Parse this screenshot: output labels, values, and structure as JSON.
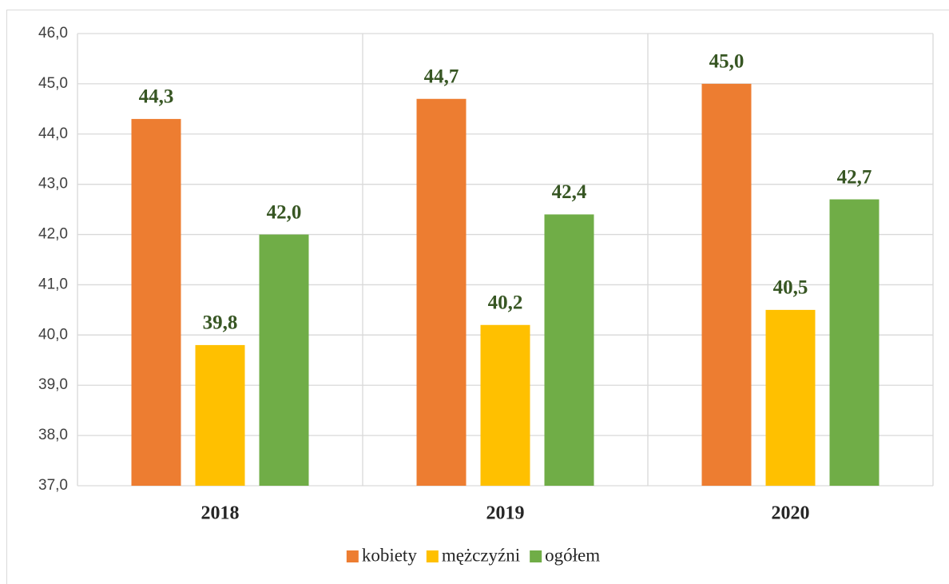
{
  "chart_data": {
    "type": "bar",
    "categories": [
      "2018",
      "2019",
      "2020"
    ],
    "series": [
      {
        "name": "kobiety",
        "color": "#ed7d31",
        "values": [
          44.3,
          44.7,
          45.0
        ],
        "value_labels": [
          "44,3",
          "44,7",
          "45,0"
        ]
      },
      {
        "name": "mężczyźni",
        "color": "#ffc000",
        "values": [
          39.8,
          40.2,
          40.5
        ],
        "value_labels": [
          "39,8",
          "40,2",
          "40,5"
        ]
      },
      {
        "name": "ogółem",
        "color": "#70ad47",
        "values": [
          42.0,
          42.4,
          42.7
        ],
        "value_labels": [
          "42,0",
          "42,4",
          "42,7"
        ]
      }
    ],
    "ylim": [
      37,
      46
    ],
    "yticks": [
      {
        "value": 37,
        "label": "37,0"
      },
      {
        "value": 38,
        "label": "38,0"
      },
      {
        "value": 39,
        "label": "39,0"
      },
      {
        "value": 40,
        "label": "40,0"
      },
      {
        "value": 41,
        "label": "41,0"
      },
      {
        "value": 42,
        "label": "42,0"
      },
      {
        "value": 43,
        "label": "43,0"
      },
      {
        "value": 44,
        "label": "44,0"
      },
      {
        "value": 45,
        "label": "45,0"
      },
      {
        "value": 46,
        "label": "46,0"
      }
    ],
    "grid": true,
    "legend": "bottom"
  }
}
